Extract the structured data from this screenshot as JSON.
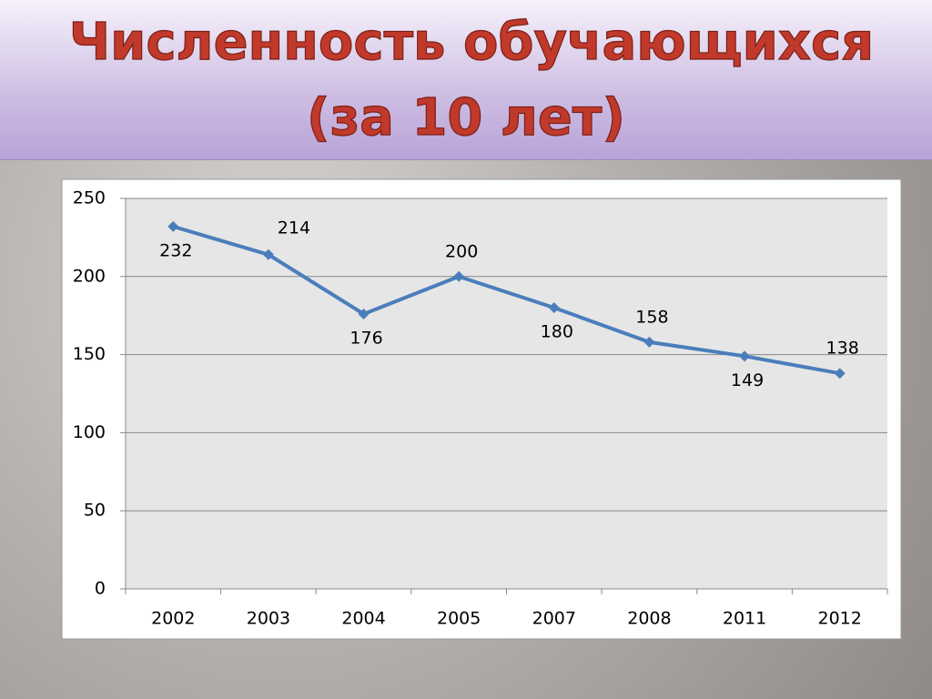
{
  "chart_data": {
    "type": "line",
    "title": "Численность обучающихся",
    "subtitle": "(за 10 лет)",
    "categories": [
      "2002",
      "2003",
      "2004",
      "2005",
      "2007",
      "2008",
      "2011",
      "2012"
    ],
    "series": [
      {
        "name": "Численность обучающихся",
        "color": "#4a7ebb",
        "values": [
          232,
          214,
          176,
          200,
          180,
          158,
          149,
          138
        ]
      }
    ],
    "ylim": [
      0,
      250
    ],
    "yticks": [
      0,
      50,
      100,
      150,
      200,
      250
    ],
    "grid": true,
    "legend": false,
    "data_labels": true
  }
}
